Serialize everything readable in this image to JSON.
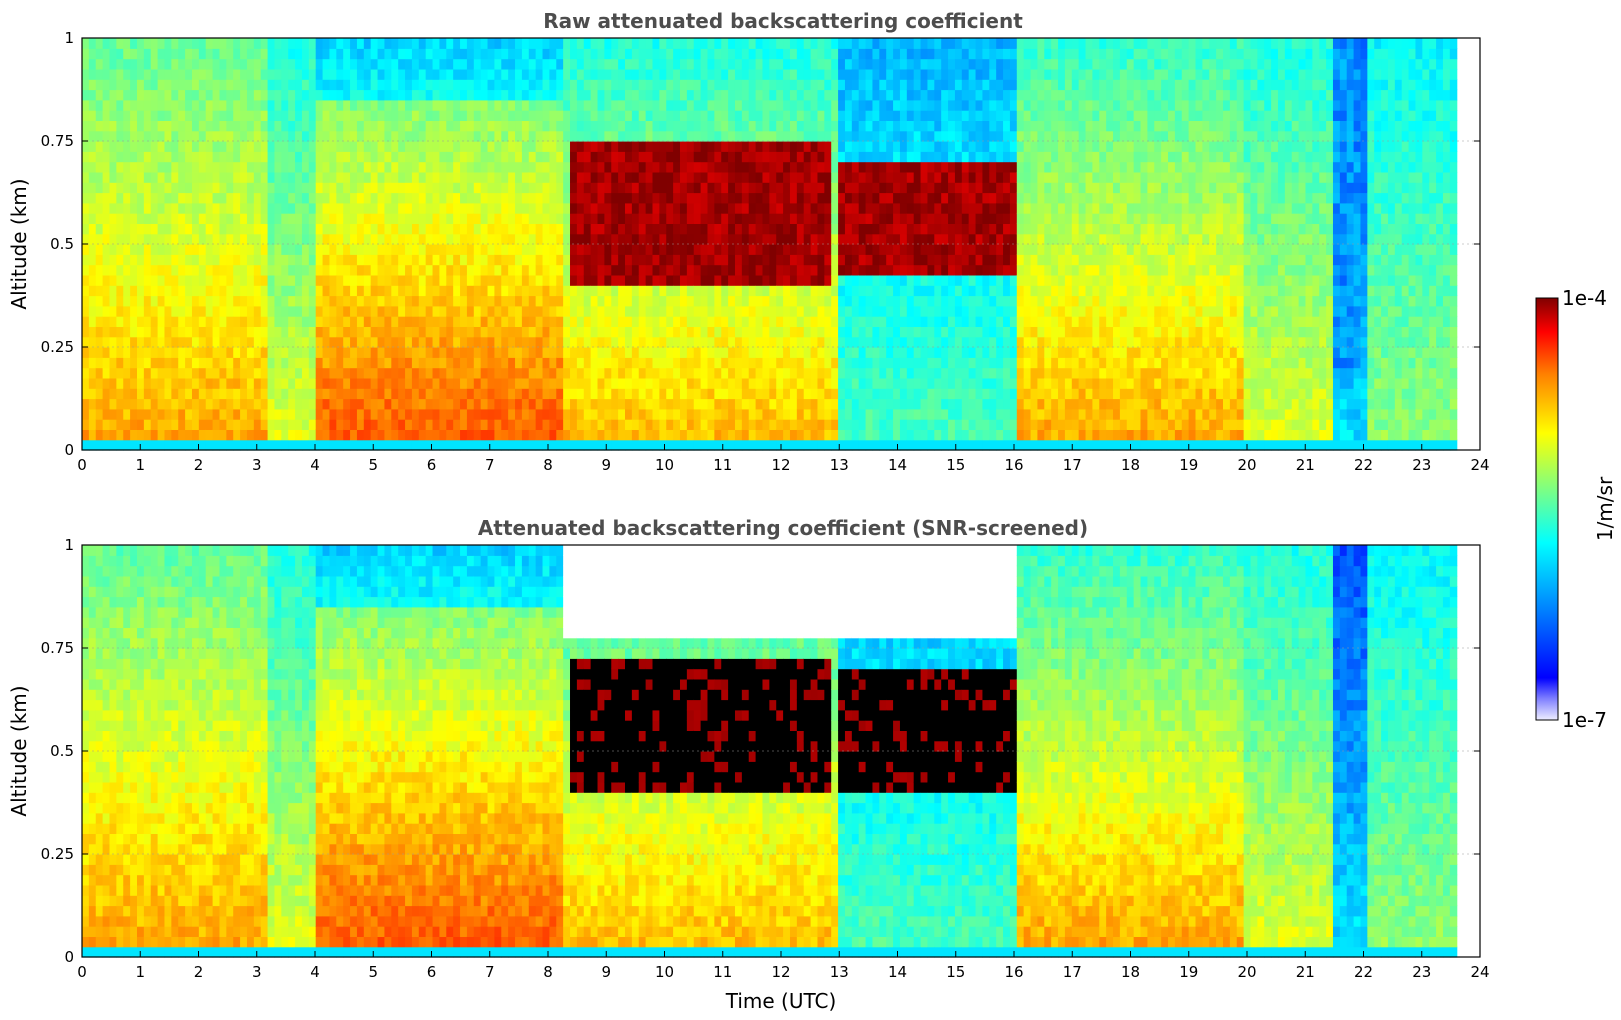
{
  "chart_data": [
    {
      "type": "heatmap",
      "title": "Raw attenuated backscattering coefficient",
      "xlabel": "",
      "ylabel": "Altitude (km)",
      "xlim": [
        0,
        24
      ],
      "ylim": [
        0,
        1
      ],
      "xticks": [
        "0",
        "1",
        "2",
        "3",
        "4",
        "5",
        "6",
        "7",
        "8",
        "9",
        "10",
        "11",
        "12",
        "13",
        "14",
        "15",
        "16",
        "17",
        "18",
        "19",
        "20",
        "21",
        "22",
        "23",
        "24"
      ],
      "yticks": [
        "0",
        "0.25",
        "0.5",
        "0.75",
        "1"
      ],
      "grid": true,
      "data_end_time": 23.6,
      "features": [
        {
          "name": "boundary layer aerosol",
          "t_start": 0,
          "t_end": 8.3,
          "alt_top": 0.5,
          "level_log10": -4.7
        },
        {
          "name": "cloud layer",
          "t_start": 8.4,
          "t_end": 12.9,
          "alt_bottom": 0.4,
          "alt_top": 0.75,
          "level_log10": -4.1
        },
        {
          "name": "cloud layer",
          "t_start": 13.0,
          "t_end": 16.0,
          "alt_bottom": 0.42,
          "alt_top": 0.7,
          "level_log10": -4.1
        },
        {
          "name": "clean air",
          "t_start": 21.5,
          "t_end": 22.0,
          "alt_bottom": 0.2,
          "alt_top": 1.0,
          "level_log10": -6.2
        }
      ]
    },
    {
      "type": "heatmap",
      "title": "Attenuated backscattering coefficient (SNR-screened)",
      "xlabel": "Time (UTC)",
      "ylabel": "Altitude (km)",
      "xlim": [
        0,
        24
      ],
      "ylim": [
        0,
        1
      ],
      "xticks": [
        "0",
        "1",
        "2",
        "3",
        "4",
        "5",
        "6",
        "7",
        "8",
        "9",
        "10",
        "11",
        "12",
        "13",
        "14",
        "15",
        "16",
        "17",
        "18",
        "19",
        "20",
        "21",
        "22",
        "23",
        "24"
      ],
      "yticks": [
        "0",
        "0.25",
        "0.5",
        "0.75",
        "1"
      ],
      "grid": true,
      "data_end_time": 23.6,
      "features": [
        {
          "name": "boundary layer aerosol",
          "t_start": 0,
          "t_end": 8.3,
          "alt_top": 0.5,
          "level_log10": -4.7
        },
        {
          "name": "screened cloud layer",
          "t_start": 8.4,
          "t_end": 12.9,
          "alt_bottom": 0.4,
          "alt_top": 0.72,
          "level_log10": -4.0
        },
        {
          "name": "screened cloud layer",
          "t_start": 13.0,
          "t_end": 16.0,
          "alt_bottom": 0.4,
          "alt_top": 0.7,
          "level_log10": -4.0
        },
        {
          "name": "screened (no data)",
          "t_start": 8.3,
          "t_end": 16.0,
          "alt_bottom": 0.78,
          "alt_top": 1.0
        }
      ]
    }
  ],
  "colorbar": {
    "min_label": "1e-7",
    "max_label": "1e-4",
    "unit": "1/m/sr",
    "colormap": "jet",
    "scale": "log"
  }
}
